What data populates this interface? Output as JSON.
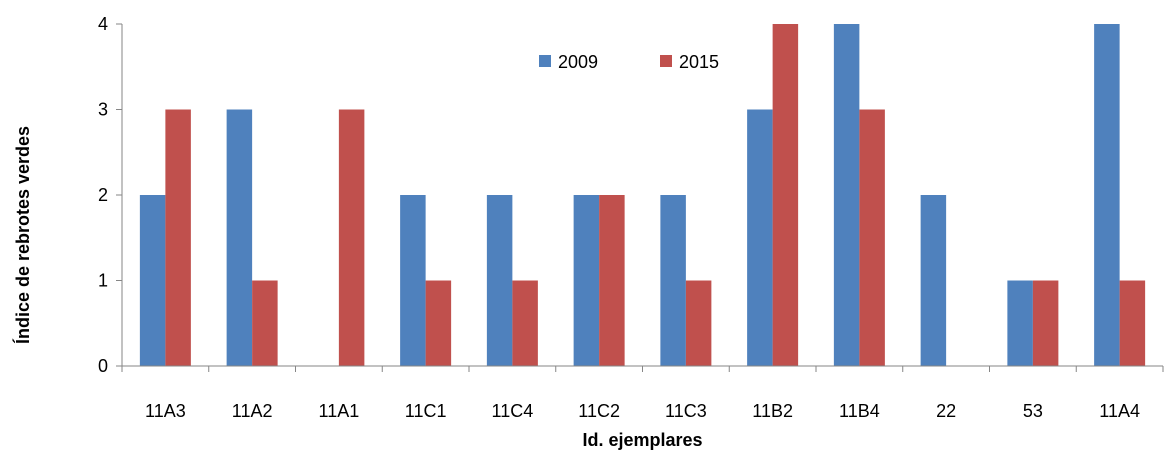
{
  "chart_data": {
    "type": "bar",
    "title": "",
    "xlabel": "Id. ejemplares",
    "ylabel": "Índice de rebrotes verdes",
    "categories": [
      "11A3",
      "11A2",
      "11A1",
      "11C1",
      "11C4",
      "11C2",
      "11C3",
      "11B2",
      "11B4",
      "22",
      "53",
      "11A4"
    ],
    "series": [
      {
        "name": "2009",
        "values": [
          2,
          3,
          0,
          2,
          2,
          2,
          2,
          3,
          4,
          2,
          1,
          4
        ],
        "color": "#4F81BD"
      },
      {
        "name": "2015",
        "values": [
          3,
          1,
          3,
          1,
          1,
          2,
          1,
          4,
          3,
          0,
          1,
          1
        ],
        "color": "#C0504D"
      }
    ],
    "ylim": [
      0,
      4
    ],
    "yticks": [
      0,
      1,
      2,
      3,
      4
    ],
    "grid": false,
    "legend_position": "top-center"
  }
}
